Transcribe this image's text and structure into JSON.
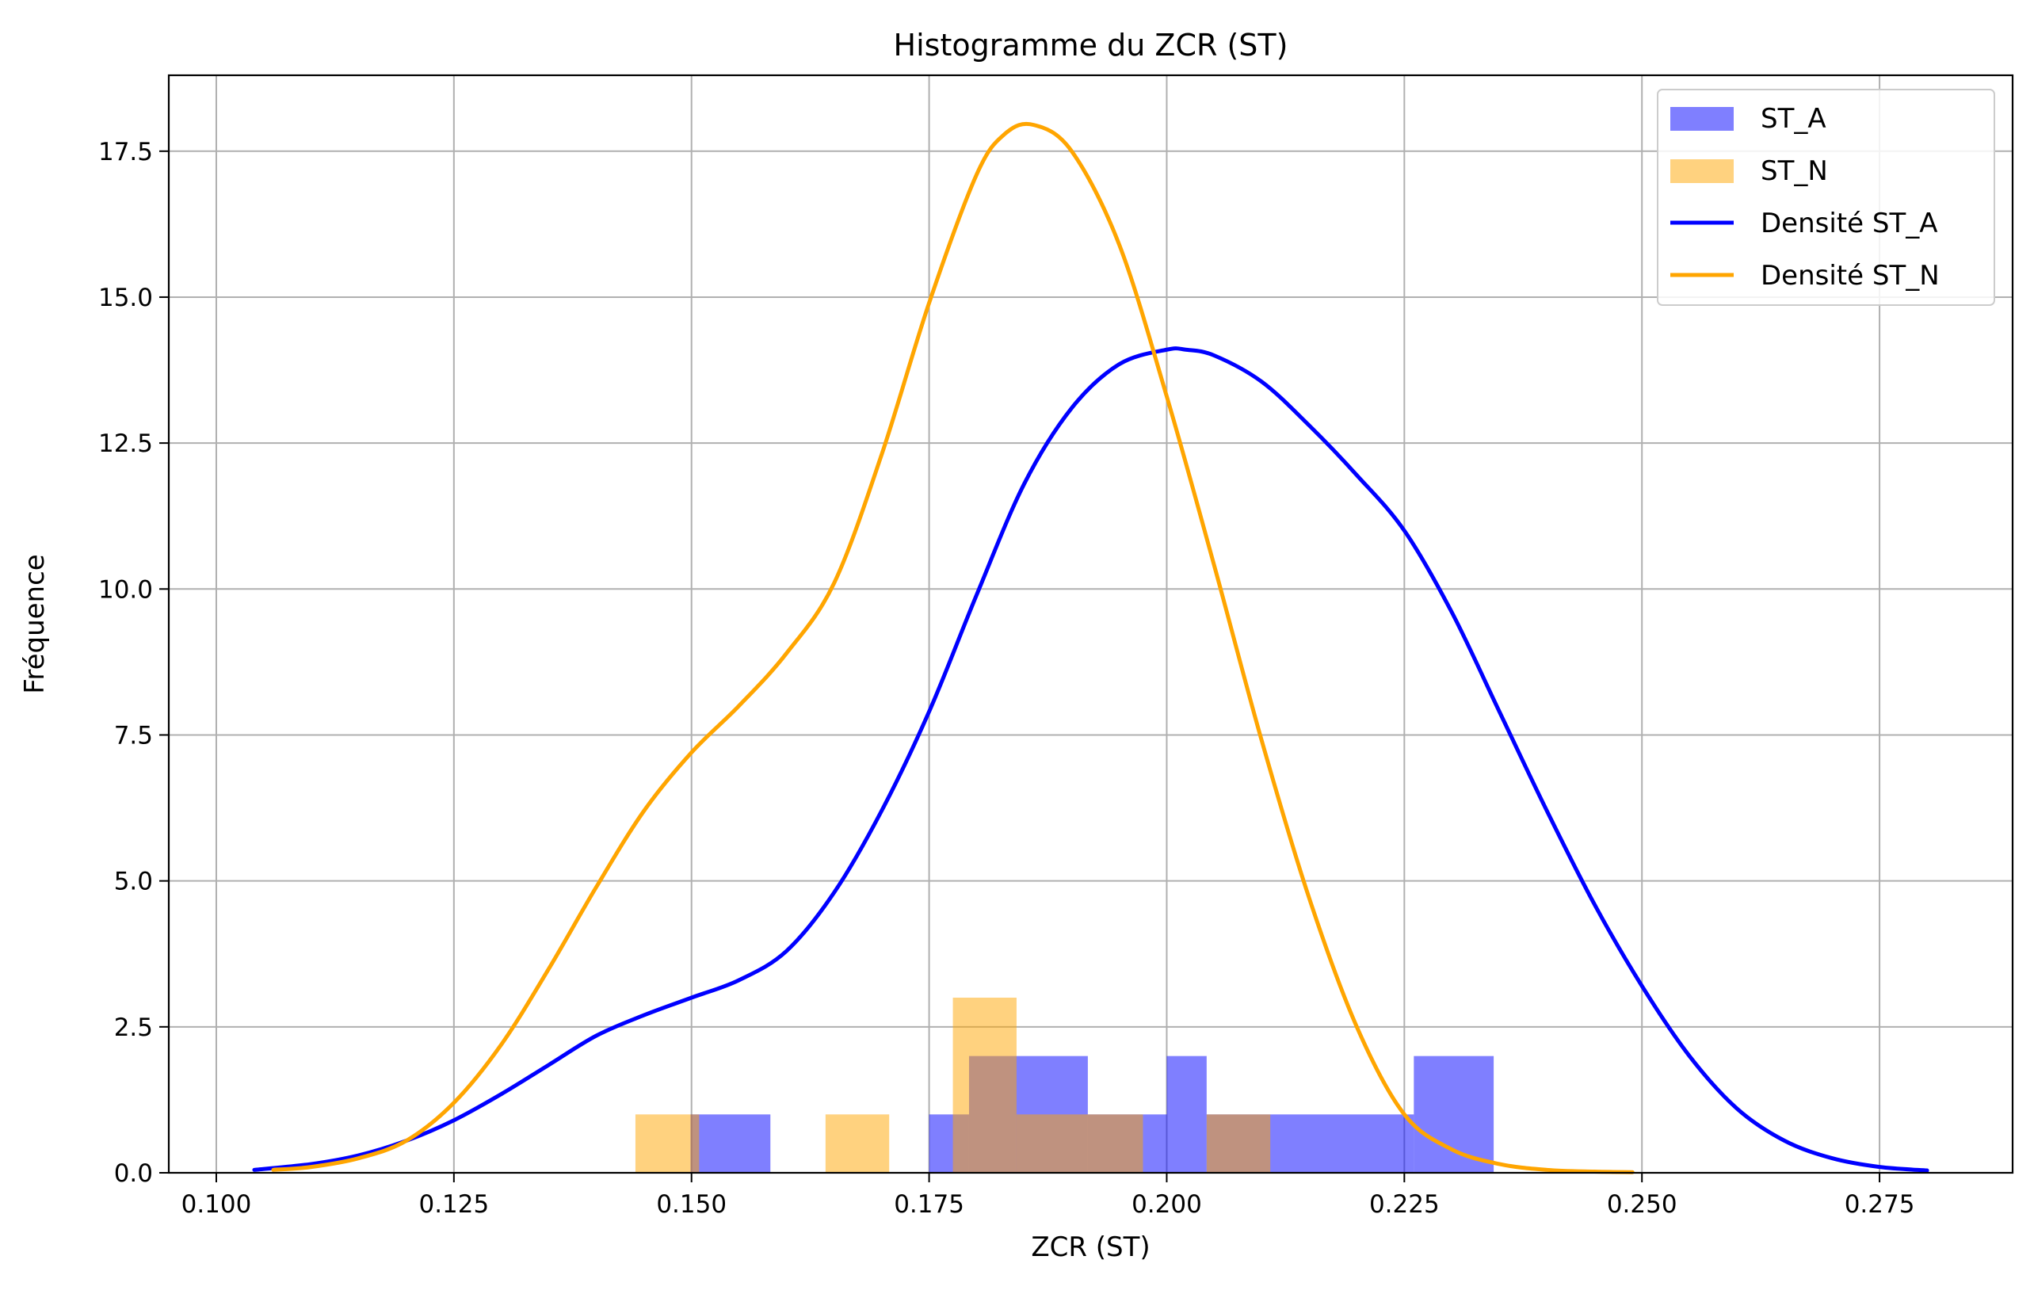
{
  "chart_data": {
    "type": "histogram",
    "title": "Histogramme du ZCR (ST)",
    "xlabel": "ZCR (ST)",
    "ylabel": "Fréquence",
    "xlim": [
      0.095,
      0.289
    ],
    "ylim": [
      0,
      18.8
    ],
    "xticks": [
      0.1,
      0.125,
      0.15,
      0.175,
      0.2,
      0.225,
      0.25,
      0.275
    ],
    "xtick_labels": [
      "0.100",
      "0.125",
      "0.150",
      "0.175",
      "0.200",
      "0.225",
      "0.250",
      "0.275"
    ],
    "yticks": [
      0.0,
      2.5,
      5.0,
      7.5,
      10.0,
      12.5,
      15.0,
      17.5
    ],
    "ytick_labels": [
      "0.0",
      "2.5",
      "5.0",
      "7.5",
      "10.0",
      "12.5",
      "15.0",
      "17.5"
    ],
    "grid": true,
    "legend_position": "top-right",
    "colors": {
      "st_a": "#0000ff",
      "st_n": "#ffa500",
      "grid": "#b0b0b0"
    },
    "series": [
      {
        "name": "ST_A",
        "kind": "hist",
        "color": "#0000ff",
        "opacity": 0.5,
        "bins": [
          [
            0.1499,
            0.1583,
            1
          ],
          [
            0.175,
            0.1792,
            1
          ],
          [
            0.1792,
            0.1917,
            2
          ],
          [
            0.1917,
            0.2,
            1
          ],
          [
            0.2,
            0.2042,
            2
          ],
          [
            0.2042,
            0.2083,
            1
          ],
          [
            0.2083,
            0.226,
            1
          ],
          [
            0.226,
            0.2344,
            2
          ]
        ]
      },
      {
        "name": "ST_N",
        "kind": "hist",
        "color": "#ffa500",
        "opacity": 0.5,
        "bins": [
          [
            0.1441,
            0.1508,
            1
          ],
          [
            0.1641,
            0.1708,
            1
          ],
          [
            0.1775,
            0.1842,
            3
          ],
          [
            0.1842,
            0.1975,
            1
          ],
          [
            0.2042,
            0.2109,
            1
          ]
        ]
      },
      {
        "name": "Densité ST_A",
        "kind": "line",
        "color": "#0000ff",
        "x": [
          0.104,
          0.11,
          0.115,
          0.12,
          0.125,
          0.13,
          0.135,
          0.14,
          0.145,
          0.15,
          0.155,
          0.16,
          0.165,
          0.17,
          0.175,
          0.18,
          0.185,
          0.19,
          0.195,
          0.2,
          0.202,
          0.205,
          0.21,
          0.215,
          0.22,
          0.225,
          0.23,
          0.235,
          0.24,
          0.245,
          0.25,
          0.255,
          0.26,
          0.265,
          0.27,
          0.275,
          0.28
        ],
        "y": [
          0.05,
          0.15,
          0.3,
          0.55,
          0.9,
          1.35,
          1.85,
          2.35,
          2.7,
          3.0,
          3.3,
          3.8,
          4.8,
          6.2,
          7.9,
          9.9,
          11.8,
          13.1,
          13.85,
          14.1,
          14.1,
          14.0,
          13.55,
          12.8,
          11.95,
          11.0,
          9.6,
          7.9,
          6.2,
          4.6,
          3.2,
          2.0,
          1.1,
          0.55,
          0.25,
          0.1,
          0.04
        ]
      },
      {
        "name": "Densité ST_N",
        "kind": "line",
        "color": "#ffa500",
        "x": [
          0.106,
          0.11,
          0.115,
          0.12,
          0.125,
          0.13,
          0.135,
          0.14,
          0.145,
          0.15,
          0.155,
          0.16,
          0.165,
          0.17,
          0.175,
          0.18,
          0.183,
          0.186,
          0.19,
          0.195,
          0.2,
          0.205,
          0.21,
          0.215,
          0.22,
          0.225,
          0.23,
          0.235,
          0.24,
          0.245,
          0.249
        ],
        "y": [
          0.05,
          0.1,
          0.25,
          0.55,
          1.2,
          2.2,
          3.5,
          4.9,
          6.2,
          7.2,
          8.0,
          8.9,
          10.1,
          12.3,
          14.9,
          17.1,
          17.8,
          17.95,
          17.5,
          15.9,
          13.3,
          10.4,
          7.4,
          4.7,
          2.5,
          1.0,
          0.4,
          0.15,
          0.05,
          0.02,
          0.01
        ]
      }
    ]
  }
}
